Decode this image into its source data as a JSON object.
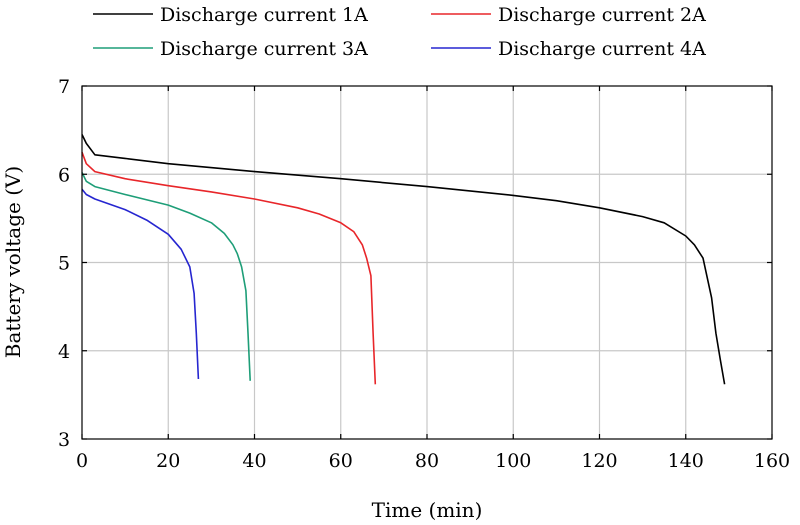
{
  "chart_data": {
    "type": "line",
    "xlabel": "Time (min)",
    "ylabel": "Battery voltage (V)",
    "xlim": [
      0,
      160
    ],
    "ylim": [
      3,
      7
    ],
    "xticks": [
      0,
      20,
      40,
      60,
      80,
      100,
      120,
      140,
      160
    ],
    "yticks": [
      3,
      4,
      5,
      6,
      7
    ],
    "grid": true,
    "legend_position": "top",
    "series": [
      {
        "name": "Discharge current 1A",
        "color": "#000000",
        "x": [
          0,
          1,
          3,
          10,
          20,
          40,
          60,
          80,
          100,
          110,
          120,
          130,
          135,
          140,
          142,
          144,
          146,
          147,
          148,
          149
        ],
        "y": [
          6.45,
          6.35,
          6.22,
          6.18,
          6.12,
          6.03,
          5.95,
          5.86,
          5.76,
          5.7,
          5.62,
          5.52,
          5.45,
          5.3,
          5.2,
          5.05,
          4.6,
          4.2,
          3.9,
          3.62
        ]
      },
      {
        "name": "Discharge current 2A",
        "color": "#e8262a",
        "x": [
          0,
          1,
          3,
          10,
          20,
          30,
          40,
          50,
          55,
          60,
          63,
          65,
          66,
          67,
          67.5,
          68
        ],
        "y": [
          6.25,
          6.12,
          6.03,
          5.95,
          5.87,
          5.8,
          5.72,
          5.62,
          5.55,
          5.45,
          5.35,
          5.2,
          5.05,
          4.85,
          4.2,
          3.62
        ]
      },
      {
        "name": "Discharge current 3A",
        "color": "#1e9e78",
        "x": [
          0,
          1,
          3,
          10,
          20,
          25,
          30,
          33,
          35,
          36,
          37,
          38,
          38.5,
          39
        ],
        "y": [
          6.02,
          5.92,
          5.86,
          5.77,
          5.65,
          5.56,
          5.45,
          5.33,
          5.2,
          5.1,
          4.95,
          4.68,
          4.2,
          3.66
        ]
      },
      {
        "name": "Discharge current 4A",
        "color": "#2626d0",
        "x": [
          0,
          1,
          3,
          10,
          15,
          20,
          23,
          25,
          26,
          26.5,
          27
        ],
        "y": [
          5.83,
          5.77,
          5.72,
          5.6,
          5.48,
          5.32,
          5.15,
          4.95,
          4.65,
          4.2,
          3.68
        ]
      }
    ]
  }
}
